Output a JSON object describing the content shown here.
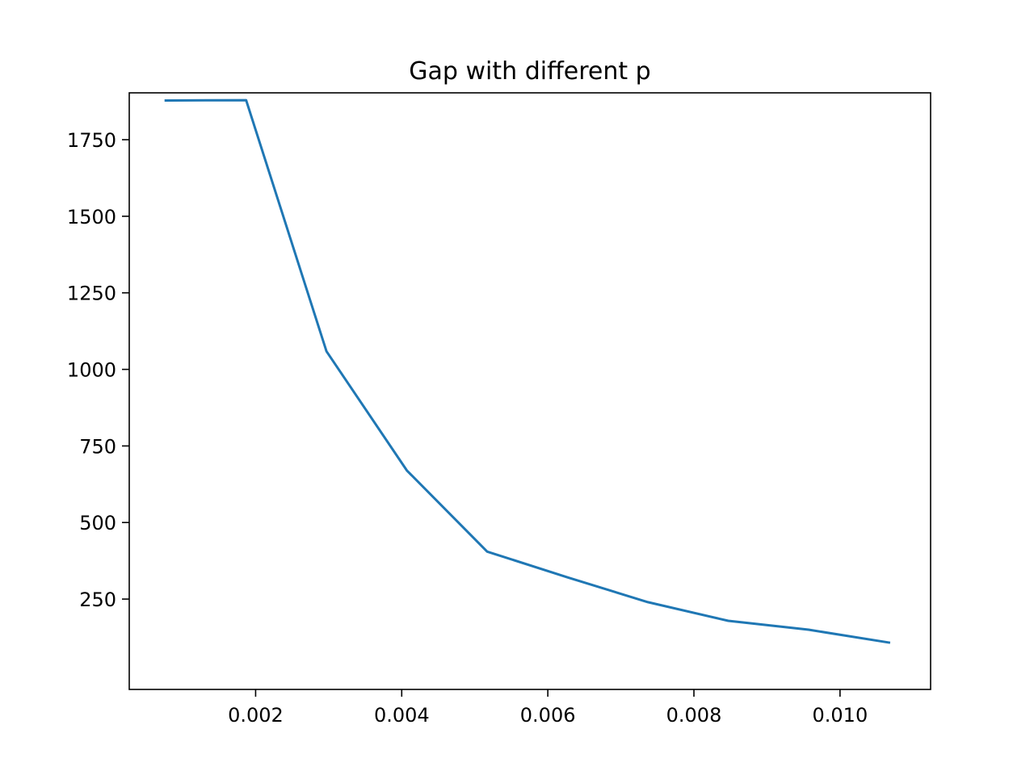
{
  "chart_data": {
    "type": "line",
    "title": "Gap with different p",
    "xlabel": "",
    "ylabel": "",
    "xlim": [
      0.00027,
      0.01124
    ],
    "ylim": [
      -45,
      1903
    ],
    "x_ticks": [
      0.002,
      0.004,
      0.006,
      0.008,
      0.01
    ],
    "x_tick_labels": [
      "0.002",
      "0.004",
      "0.006",
      "0.008",
      "0.010"
    ],
    "y_ticks": [
      250,
      500,
      750,
      1000,
      1250,
      1500,
      1750
    ],
    "y_tick_labels": [
      "250",
      "500",
      "750",
      "1000",
      "1250",
      "1500",
      "1750"
    ],
    "grid": false,
    "series": [
      {
        "color": "#1f77b4",
        "x": [
          0.00077,
          0.00187,
          0.00297,
          0.00407,
          0.00517,
          0.00627,
          0.00737,
          0.00847,
          0.00957,
          0.01067
        ],
        "y": [
          1878,
          1879,
          1059,
          670,
          405,
          321,
          240,
          179,
          150,
          108
        ]
      }
    ]
  }
}
